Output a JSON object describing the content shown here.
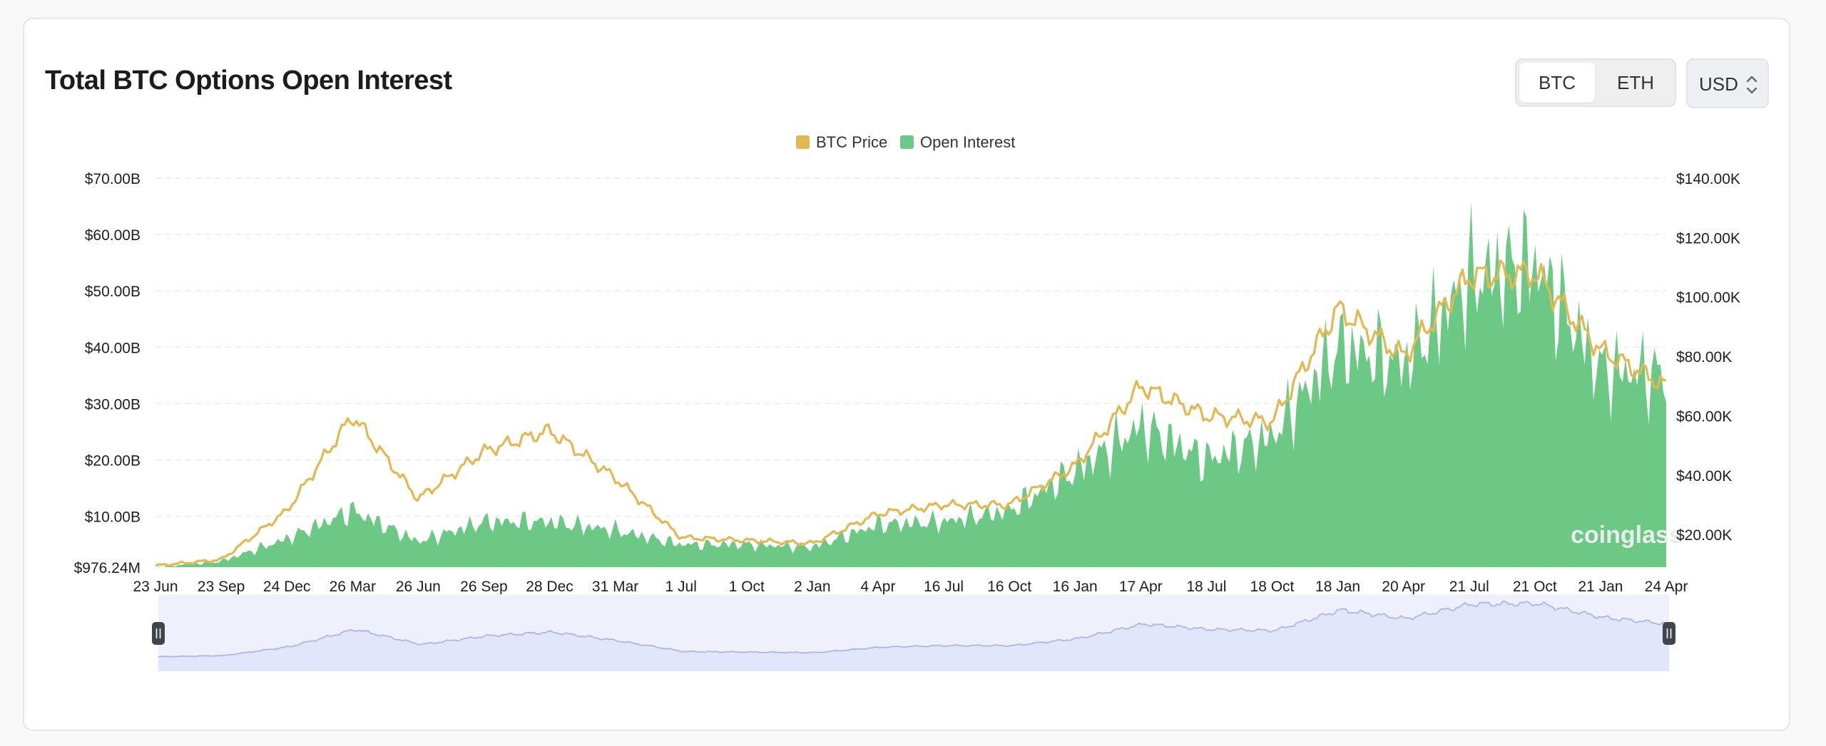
{
  "header": {
    "title": "Total BTC Options Open Interest",
    "asset_tabs": [
      {
        "label": "BTC",
        "active": true
      },
      {
        "label": "ETH",
        "active": false
      }
    ],
    "currency": "USD"
  },
  "watermark": "coinglass",
  "colors": {
    "price": "#e3b853",
    "open_interest": "#6cc985",
    "slider_fill": "#e2e6fb",
    "slider_line": "#aeb5e6"
  },
  "chart_data": {
    "type": "area",
    "legend": [
      {
        "name": "BTC Price",
        "color": "#e3b853"
      },
      {
        "name": "Open Interest",
        "color": "#6cc985"
      }
    ],
    "legend_position": "top-center",
    "grid": true,
    "left_axis": {
      "ticks": [
        "$976.24M",
        "$10.00B",
        "$20.00B",
        "$30.00B",
        "$40.00B",
        "$50.00B",
        "$60.00B",
        "$70.00B"
      ],
      "values": [
        0.97624,
        10,
        20,
        30,
        40,
        50,
        60,
        70
      ],
      "unit": "billion USD",
      "range": [
        0.97624,
        70
      ]
    },
    "right_axis": {
      "ticks": [
        "$20.00K",
        "$40.00K",
        "$60.00K",
        "$80.00K",
        "$100.00K",
        "$120.00K",
        "$140.00K"
      ],
      "values": [
        20,
        40,
        60,
        80,
        100,
        120,
        140
      ],
      "unit": "thousand USD",
      "range": [
        9,
        140
      ]
    },
    "x_ticks": [
      "23 Jun",
      "23 Sep",
      "24 Dec",
      "26 Mar",
      "26 Jun",
      "26 Sep",
      "28 Dec",
      "31 Mar",
      "1 Jul",
      "1 Oct",
      "2 Jan",
      "4 Apr",
      "16 Jul",
      "16 Oct",
      "16 Jan",
      "17 Apr",
      "18 Jul",
      "18 Oct",
      "18 Jan",
      "20 Apr",
      "21 Jul",
      "21 Oct",
      "21 Jan",
      "24 Apr"
    ],
    "series": [
      {
        "name": "BTC Price",
        "axis": "right",
        "x": [
          "23 Jun",
          "23 Sep",
          "24 Dec",
          "26 Mar",
          "26 Jun",
          "26 Sep",
          "28 Dec",
          "31 Mar",
          "1 Jul",
          "1 Oct",
          "2 Jan",
          "4 Apr",
          "16 Jul",
          "16 Oct",
          "16 Jan",
          "17 Apr",
          "18 Jul",
          "18 Oct",
          "18 Jan",
          "20 Apr",
          "21 Jul",
          "21 Oct",
          "21 Jan",
          "24 Apr"
        ],
        "values": [
          9.5,
          11.5,
          28,
          60,
          32,
          48,
          55,
          39,
          19,
          18,
          17,
          27,
          30,
          30,
          43,
          70,
          60,
          58,
          96,
          80,
          107,
          108,
          82,
          70
        ]
      },
      {
        "name": "Open Interest",
        "axis": "left",
        "x": [
          "23 Jun",
          "23 Sep",
          "24 Dec",
          "26 Mar",
          "26 Jun",
          "26 Sep",
          "28 Dec",
          "31 Mar",
          "1 Jul",
          "1 Oct",
          "2 Jan",
          "4 Apr",
          "16 Jul",
          "16 Oct",
          "16 Jan",
          "17 Apr",
          "18 Jul",
          "18 Oct",
          "18 Jan",
          "20 Apr",
          "21 Jul",
          "21 Oct",
          "21 Jan",
          "24 Apr"
        ],
        "values": [
          1,
          2,
          6,
          11,
          5.5,
          9,
          9,
          7.5,
          5,
          5,
          4.5,
          8.5,
          9,
          11,
          18,
          26,
          20,
          24,
          40,
          37,
          52,
          55,
          36,
          35
        ]
      }
    ],
    "navigator": {
      "range_start": "23 Jun",
      "range_end": "24 Apr"
    }
  }
}
